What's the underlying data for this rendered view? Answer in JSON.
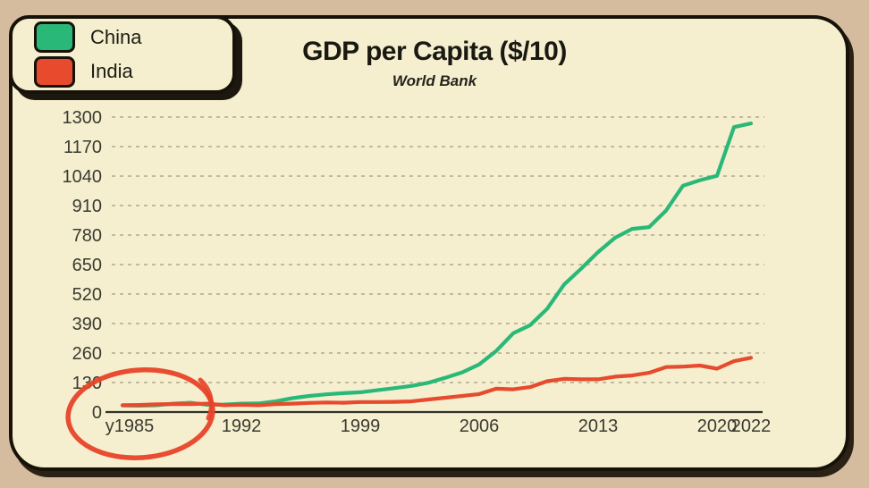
{
  "colors": {
    "outer_background": "#d5bc9e",
    "card_background": "#f5efcf",
    "card_border": "#171209",
    "grid": "#b1a98f",
    "axis": "#32322a",
    "tick_text": "#3a3a30",
    "china_green": "#2ab878",
    "india_red": "#e74a2d",
    "annotation_red": "#e74328"
  },
  "header": {
    "title": "GDP per Capita ($/10)",
    "subtitle": "World Bank"
  },
  "legend": {
    "position": "top-left",
    "items": [
      {
        "label": "China",
        "color": "#2ab878"
      },
      {
        "label": "India",
        "color": "#e74a2d"
      }
    ]
  },
  "chart_data": {
    "type": "line",
    "title": "GDP per Capita ($/10)",
    "subtitle": "World Bank",
    "x": [
      1985,
      1986,
      1987,
      1988,
      1989,
      1990,
      1991,
      1992,
      1993,
      1994,
      1995,
      1996,
      1997,
      1998,
      1999,
      2000,
      2001,
      2002,
      2003,
      2004,
      2005,
      2006,
      2007,
      2008,
      2009,
      2010,
      2011,
      2012,
      2013,
      2014,
      2015,
      2016,
      2017,
      2018,
      2019,
      2020,
      2021,
      2022
    ],
    "series": [
      {
        "name": "China",
        "color": "#2ab878",
        "values": [
          29,
          28,
          30,
          37,
          41,
          32,
          33,
          37,
          38,
          47,
          61,
          71,
          78,
          83,
          87,
          96,
          105,
          115,
          129,
          151,
          175,
          210,
          269,
          347,
          383,
          455,
          562,
          632,
          705,
          768,
          807,
          815,
          888,
          998,
          1022,
          1041,
          1256,
          1272
        ]
      },
      {
        "name": "India",
        "color": "#e74a2d",
        "values": [
          30,
          31,
          34,
          35,
          35,
          37,
          30,
          32,
          30,
          35,
          37,
          40,
          42,
          41,
          44,
          44,
          45,
          47,
          55,
          63,
          71,
          79,
          103,
          100,
          110,
          136,
          146,
          144,
          144,
          156,
          161,
          173,
          198,
          200,
          205,
          191,
          224,
          239
        ]
      }
    ],
    "ylim": [
      0,
      1300
    ],
    "yticks": [
      0,
      130,
      260,
      390,
      520,
      650,
      780,
      910,
      1040,
      1170,
      1300
    ],
    "ytick_labels": [
      "0",
      "130",
      "260",
      "390",
      "520",
      "650",
      "780",
      "910",
      "1040",
      "1170",
      "1300"
    ],
    "xticks": [
      {
        "year": 1985,
        "label": "y1985"
      },
      {
        "year": 1992,
        "label": "1992"
      },
      {
        "year": 1999,
        "label": "1999"
      },
      {
        "year": 2006,
        "label": "2006"
      },
      {
        "year": 2013,
        "label": "2013"
      },
      {
        "year": 2020,
        "label": "2020"
      },
      {
        "year": 2022,
        "label": "2022"
      }
    ],
    "grid": "horizontal dashed",
    "legend_position": "top-left",
    "annotation": {
      "shape": "hand-drawn red ellipse",
      "color": "#e74328",
      "target": "circles the origin: 0 tick and y1985 label"
    }
  }
}
